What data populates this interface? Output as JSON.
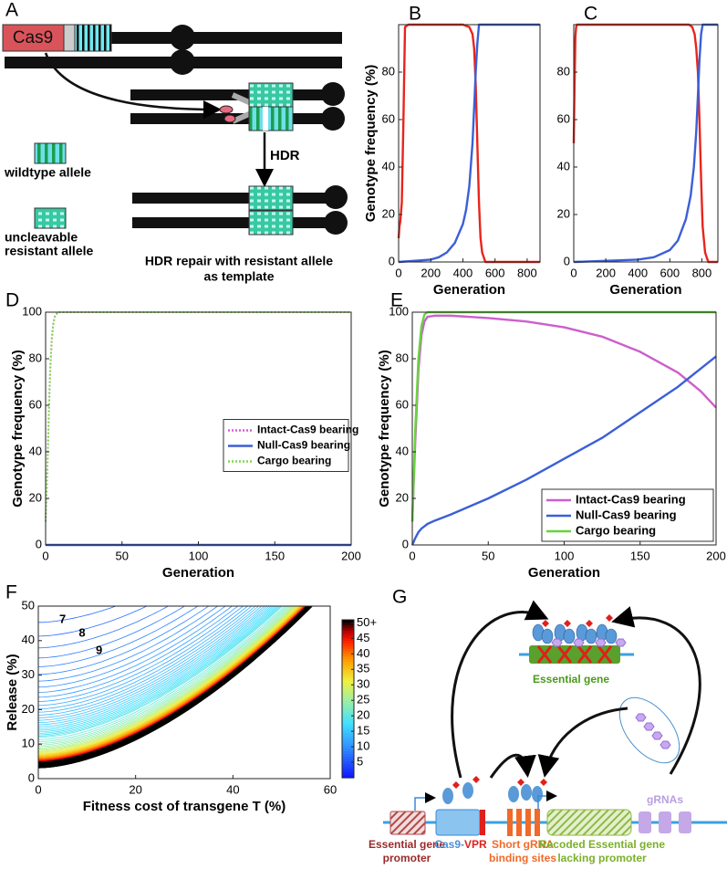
{
  "panel_labels": [
    "A",
    "B",
    "C",
    "D",
    "E",
    "F",
    "G"
  ],
  "diagram_a": {
    "cas9": "Cas9",
    "hdr": "HDR",
    "wildtype": "wildtype allele",
    "resistant": [
      "uncleavable",
      "resistant allele"
    ],
    "caption": [
      "HDR repair with resistant allele",
      "as template"
    ]
  },
  "diagram_g": {
    "essential_gene": "Essential gene",
    "grnas": "gRNAs",
    "promoter": [
      "Essential gene",
      "promoter"
    ],
    "cas9": "Cas9-",
    "vpr": "VPR",
    "binding": [
      "Short gRNA",
      "binding sites"
    ],
    "recoded": [
      "Recoded Essential gene",
      "lacking promoter"
    ]
  },
  "chart_data": [
    {
      "type": "line",
      "xlabel": "Generation",
      "ylabel": "Genotype frequency (%)",
      "xlim": [
        0,
        880
      ],
      "xticks": [
        0,
        200,
        400,
        600,
        800
      ],
      "ylim": [
        0,
        100
      ],
      "yticks": [
        0,
        20,
        40,
        60,
        80
      ],
      "series": [
        {
          "color": "#e8251b",
          "x": [
            0,
            5,
            10,
            20,
            30,
            40,
            60,
            400,
            440,
            460,
            470,
            480,
            490,
            500,
            510,
            520,
            540,
            880
          ],
          "values": [
            10,
            15,
            17,
            25,
            60,
            99,
            100,
            100,
            99,
            96,
            90,
            75,
            50,
            25,
            10,
            4,
            0,
            0
          ]
        },
        {
          "color": "#3b5fd8",
          "x": [
            0,
            200,
            250,
            300,
            350,
            400,
            420,
            440,
            460,
            470,
            480,
            490,
            500,
            880
          ],
          "values": [
            0,
            1,
            2,
            4,
            8,
            16,
            22,
            32,
            50,
            65,
            80,
            92,
            100,
            100
          ]
        }
      ]
    },
    {
      "type": "line",
      "xlabel": "Generation",
      "xlim": [
        0,
        900
      ],
      "xticks": [
        0,
        200,
        400,
        600,
        800
      ],
      "ylim": [
        0,
        100
      ],
      "yticks": [
        0,
        20,
        40,
        60,
        80
      ],
      "series": [
        {
          "color": "#e8251b",
          "x": [
            0,
            5,
            10,
            15,
            20,
            720,
            740,
            755,
            765,
            775,
            785,
            795,
            805,
            820,
            840,
            900
          ],
          "values": [
            50,
            75,
            95,
            99,
            100,
            100,
            99,
            96,
            90,
            80,
            60,
            35,
            15,
            4,
            0,
            0
          ]
        },
        {
          "color": "#3b5fd8",
          "x": [
            0,
            400,
            500,
            600,
            650,
            700,
            730,
            750,
            765,
            775,
            785,
            795,
            805,
            900
          ],
          "values": [
            0,
            1,
            2,
            5,
            9,
            18,
            28,
            40,
            55,
            70,
            85,
            96,
            100,
            100
          ]
        }
      ]
    },
    {
      "type": "line",
      "xlabel": "Generation",
      "ylabel": "Genotype frequency (%)",
      "xlim": [
        0,
        200
      ],
      "xticks": [
        0,
        50,
        100,
        150,
        200
      ],
      "ylim": [
        0,
        100
      ],
      "yticks": [
        0,
        20,
        40,
        60,
        80,
        100
      ],
      "legend": "right",
      "series": [
        {
          "name": "Intact-Cas9 bearing",
          "color": "#d65fd6",
          "style": "dotted",
          "x": [
            0,
            1,
            2,
            3,
            4,
            5,
            6,
            8,
            10,
            200
          ],
          "values": [
            10,
            30,
            55,
            75,
            88,
            95,
            98,
            100,
            100,
            100
          ]
        },
        {
          "name": "Null-Cas9 bearing",
          "color": "#3b5fd8",
          "x": [
            0,
            200
          ],
          "values": [
            0,
            0
          ]
        },
        {
          "name": "Cargo bearing",
          "color": "#7fd64b",
          "style": "dotted",
          "x": [
            0,
            1,
            2,
            3,
            4,
            5,
            6,
            8,
            10,
            200
          ],
          "values": [
            10,
            30,
            55,
            75,
            88,
            95,
            98,
            100,
            100,
            100
          ]
        }
      ]
    },
    {
      "type": "line",
      "xlabel": "Generation",
      "ylabel": "Genotype frequency (%)",
      "xlim": [
        0,
        200
      ],
      "xticks": [
        0,
        50,
        100,
        150,
        200
      ],
      "ylim": [
        0,
        100
      ],
      "yticks": [
        0,
        20,
        40,
        60,
        80,
        100
      ],
      "legend": "lower right",
      "series": [
        {
          "name": "Intact-Cas9 bearing",
          "color": "#cc5fcc",
          "x": [
            0,
            2,
            4,
            6,
            8,
            10,
            15,
            25,
            50,
            75,
            100,
            125,
            150,
            175,
            190,
            200
          ],
          "values": [
            10,
            45,
            75,
            90,
            96,
            98,
            98.5,
            98.5,
            97.5,
            96,
            93.5,
            89.5,
            83,
            74,
            66,
            59
          ]
        },
        {
          "name": "Null-Cas9 bearing",
          "color": "#3b5fd8",
          "x": [
            0,
            2,
            4,
            6,
            8,
            10,
            15,
            25,
            50,
            75,
            100,
            125,
            150,
            175,
            200
          ],
          "values": [
            0,
            3,
            5.5,
            7,
            8,
            9,
            10.5,
            13,
            20,
            28,
            37,
            46,
            57,
            68,
            81
          ]
        },
        {
          "name": "Cargo bearing",
          "color": "#66d63a",
          "x": [
            0,
            2,
            4,
            6,
            8,
            10,
            200
          ],
          "values": [
            10,
            50,
            80,
            94,
            99,
            100,
            100
          ]
        }
      ]
    },
    {
      "type": "contour",
      "xlabel": "Fitness cost of transgene T (%)",
      "ylabel": "Release (%)",
      "xlim": [
        0,
        60
      ],
      "xticks": [
        0,
        20,
        40,
        60
      ],
      "ylim": [
        0,
        50
      ],
      "yticks": [
        0,
        10,
        20,
        30,
        40,
        50
      ],
      "clim": [
        0,
        51
      ],
      "cticks": [
        5,
        10,
        15,
        20,
        25,
        30,
        35,
        40,
        45,
        {
          "value": 50,
          "label": "50+"
        }
      ],
      "annotations": [
        {
          "text": "7",
          "x": 5,
          "y": 46
        },
        {
          "text": "8",
          "x": 9,
          "y": 42
        },
        {
          "text": "9",
          "x": 12.5,
          "y": 37
        }
      ]
    }
  ]
}
